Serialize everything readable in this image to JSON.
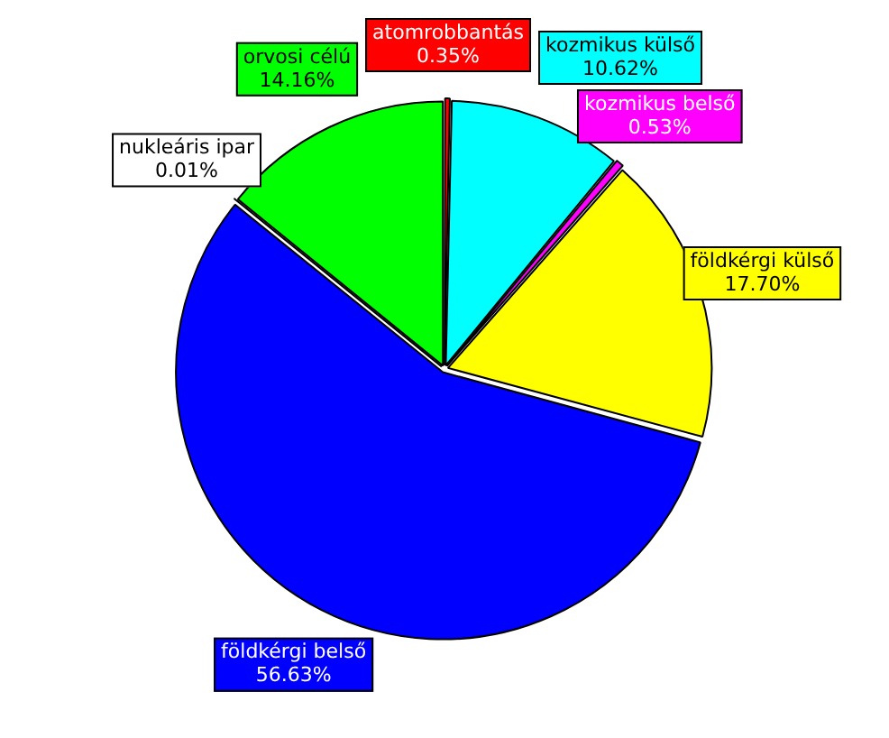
{
  "chart_data": {
    "type": "pie",
    "categories": [
      "atomrobbantás",
      "kozmikus külső",
      "kozmikus belső",
      "földkérgi külső",
      "földkérgi belső",
      "nukleáris ipar",
      "orvosi célú"
    ],
    "values": [
      0.35,
      10.62,
      0.53,
      17.7,
      56.63,
      0.01,
      14.16
    ],
    "value_labels": [
      "0.35%",
      "10.62%",
      "0.53%",
      "17.70%",
      "56.63%",
      "0.01%",
      "14.16%"
    ],
    "colors": [
      "#ff0000",
      "#00ffff",
      "#ff00ff",
      "#ffff00",
      "#0000ff",
      "#ffffff",
      "#00ff00"
    ],
    "legend": false
  }
}
